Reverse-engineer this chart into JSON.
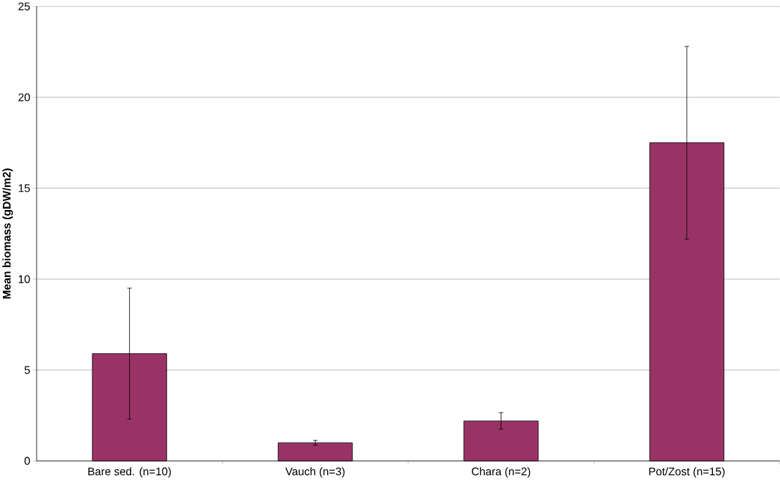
{
  "chart_data": {
    "type": "bar",
    "ylabel": "Mean biomass (gDW/m2)",
    "categories": [
      "Bare sed. (n=10)",
      "Vauch (n=3)",
      "Chara (n=2)",
      "Pot/Zost (n=15)"
    ],
    "values": [
      5.9,
      1.0,
      2.2,
      17.5
    ],
    "errors": [
      3.6,
      0.13,
      0.45,
      5.3
    ],
    "color": "#993366",
    "ylim": [
      0,
      25
    ],
    "yticks": [
      0,
      5,
      10,
      15,
      20,
      25
    ],
    "grid": "y"
  }
}
